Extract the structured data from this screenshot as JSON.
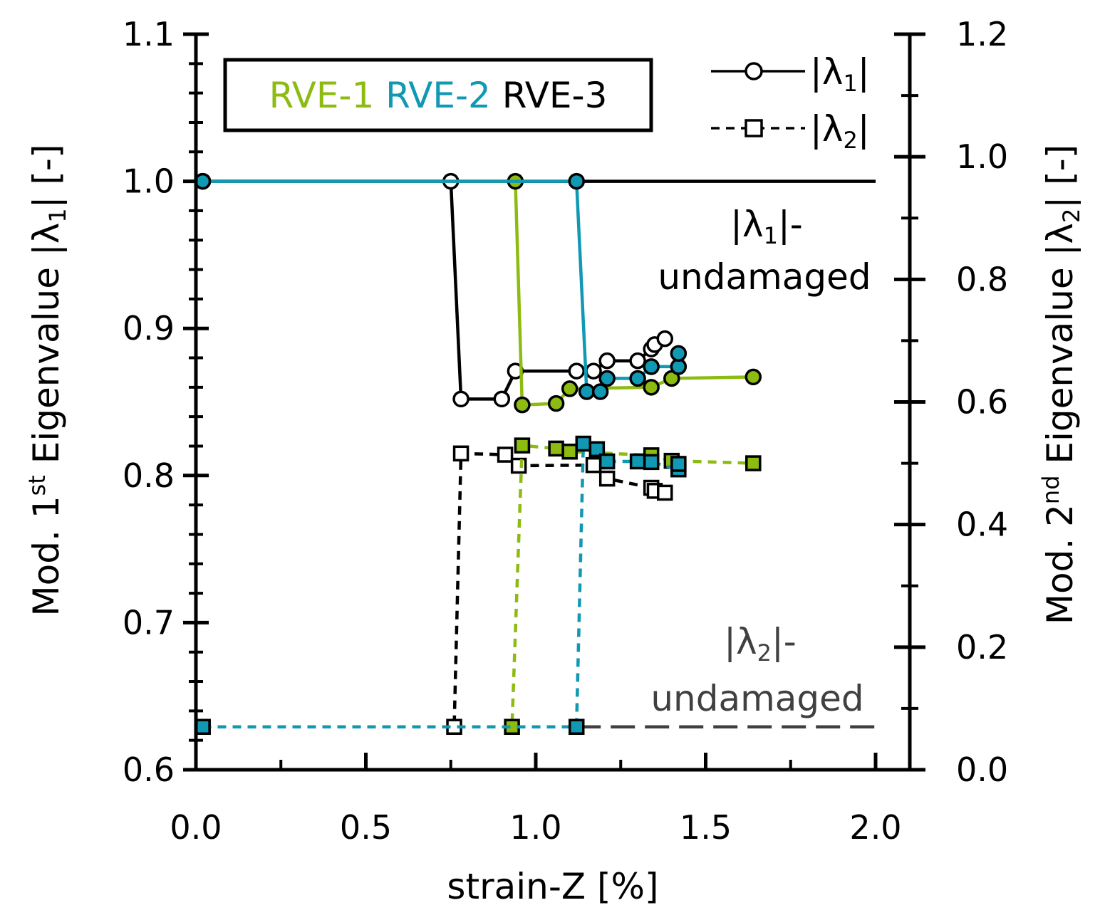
{
  "chart_data": {
    "type": "line",
    "xlabel": "strain-Z [%]",
    "ylabel_left": {
      "prefix": "Mod. 1",
      "sup": "st",
      "middle": " Eigenvalue  |λ",
      "sub": "1",
      "suffix": "|  [-]"
    },
    "ylabel_right": {
      "prefix": "Mod. 2",
      "sup": "nd",
      "middle": " Eigenvalue  |λ",
      "sub": "2",
      "suffix": "|  [-]"
    },
    "xlim": [
      0.0,
      2.0
    ],
    "ylim_left": [
      0.6,
      1.1
    ],
    "ylim_right": [
      0.0,
      1.2
    ],
    "x_ticks": [
      "0.0",
      "0.5",
      "1.0",
      "1.5",
      "2.0"
    ],
    "y_left_ticks": [
      "0.6",
      "0.7",
      "0.8",
      "0.9",
      "1.0",
      "1.1"
    ],
    "y_right_ticks": [
      "0.0",
      "0.2",
      "0.4",
      "0.6",
      "0.8",
      "1.0",
      "1.2"
    ],
    "colors": {
      "RVE-1": "#8dbb11",
      "RVE-2": "#1198b3",
      "RVE-3": "#000000",
      "undamaged2": "#404040"
    },
    "legend_box": [
      "RVE-1",
      "RVE-2",
      "RVE-3"
    ],
    "legend_markers": [
      {
        "label_prefix": "|λ",
        "sub": "1",
        "label_suffix": "|",
        "marker": "circle",
        "style": "solid"
      },
      {
        "label_prefix": "|λ",
        "sub": "2",
        "label_suffix": "|",
        "marker": "square",
        "style": "dashed"
      }
    ],
    "annotations": {
      "lambda1_undamaged": {
        "line1_prefix": "|λ",
        "line1_sub": "1",
        "line1_suffix": "|-",
        "line2": "undamaged",
        "value": 1.0
      },
      "lambda2_undamaged": {
        "line1_prefix": "|λ",
        "line1_sub": "2",
        "line1_suffix": "|-",
        "line2": "undamaged",
        "value": 0.07
      }
    },
    "series": [
      {
        "name": "RVE-3",
        "eigen": "lambda1",
        "axis": "left",
        "marker": "circle",
        "dash": false,
        "x": [
          0.02,
          0.75,
          0.78,
          0.9,
          0.94,
          1.12,
          1.17,
          1.21,
          1.3,
          1.34,
          1.35,
          1.38
        ],
        "y": [
          1.0,
          1.0,
          0.852,
          0.852,
          0.871,
          0.871,
          0.871,
          0.878,
          0.878,
          0.886,
          0.889,
          0.893
        ]
      },
      {
        "name": "RVE-1",
        "eigen": "lambda1",
        "axis": "left",
        "marker": "circle",
        "dash": false,
        "x": [
          0.02,
          0.94,
          0.96,
          1.06,
          1.1,
          1.34,
          1.4,
          1.64
        ],
        "y": [
          1.0,
          1.0,
          0.848,
          0.849,
          0.859,
          0.86,
          0.866,
          0.867
        ]
      },
      {
        "name": "RVE-2",
        "eigen": "lambda1",
        "axis": "left",
        "marker": "circle",
        "dash": false,
        "x": [
          0.02,
          1.12,
          1.15,
          1.19,
          1.21,
          1.3,
          1.34,
          1.42,
          1.42
        ],
        "y": [
          1.0,
          1.0,
          0.857,
          0.857,
          0.866,
          0.866,
          0.874,
          0.874,
          0.883
        ]
      },
      {
        "name": "RVE-3",
        "eigen": "lambda2",
        "axis": "right",
        "marker": "square",
        "dash": true,
        "x": [
          0.02,
          0.76,
          0.78,
          0.91,
          0.95,
          1.17,
          1.21,
          1.34,
          1.35,
          1.38
        ],
        "y": [
          0.07,
          0.07,
          0.516,
          0.514,
          0.496,
          0.497,
          0.475,
          0.46,
          0.455,
          0.452
        ]
      },
      {
        "name": "RVE-1",
        "eigen": "lambda2",
        "axis": "right",
        "marker": "square",
        "dash": true,
        "x": [
          0.02,
          0.93,
          0.96,
          1.06,
          1.1,
          1.34,
          1.4,
          1.64
        ],
        "y": [
          0.07,
          0.07,
          0.529,
          0.524,
          0.519,
          0.513,
          0.504,
          0.5
        ]
      },
      {
        "name": "RVE-2",
        "eigen": "lambda2",
        "axis": "right",
        "marker": "square",
        "dash": true,
        "x": [
          0.02,
          1.12,
          1.14,
          1.18,
          1.21,
          1.3,
          1.34,
          1.42,
          1.42
        ],
        "y": [
          0.07,
          0.07,
          0.532,
          0.523,
          0.503,
          0.503,
          0.502,
          0.49,
          0.499
        ]
      },
      {
        "name": "lambda1-undamaged",
        "eigen": "lambda1",
        "axis": "left",
        "marker": "none",
        "dash": false,
        "x": [
          0.02,
          2.0
        ],
        "y": [
          1.0,
          1.0
        ]
      },
      {
        "name": "lambda2-undamaged",
        "eigen": "lambda2",
        "axis": "right",
        "marker": "none",
        "dash": "long",
        "x": [
          1.12,
          2.0
        ],
        "y": [
          0.07,
          0.07
        ]
      }
    ]
  }
}
